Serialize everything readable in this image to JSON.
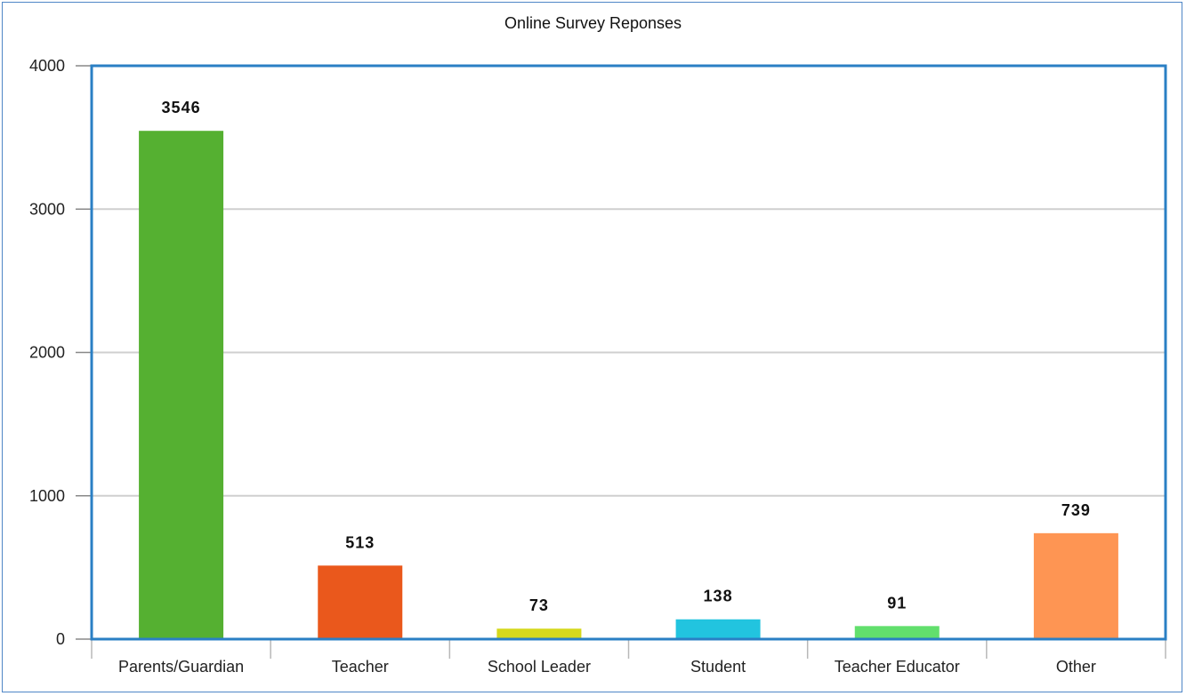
{
  "chart_data": {
    "type": "bar",
    "title": "Online Survey Reponses",
    "xlabel": "",
    "ylabel": "",
    "categories": [
      "Parents/Guardian",
      "Teacher",
      "School Leader",
      "Student",
      "Teacher Educator",
      "Other"
    ],
    "values": [
      3546,
      513,
      73,
      138,
      91,
      739
    ],
    "value_labels": [
      "3546",
      "513",
      "73",
      "138",
      "91",
      "739"
    ],
    "colors": [
      "#55b031",
      "#ea581c",
      "#d5d81c",
      "#22c4df",
      "#62df6d",
      "#fe9553"
    ],
    "ylim": [
      0,
      4000
    ],
    "yticks": [
      0,
      1000,
      2000,
      3000,
      4000
    ],
    "ytick_labels": [
      "0",
      "1000",
      "2000",
      "3000",
      "4000"
    ],
    "grid": true,
    "legend": "none",
    "plot_border_color": "#2a7fc4",
    "grid_color": "#cfcfcf"
  }
}
